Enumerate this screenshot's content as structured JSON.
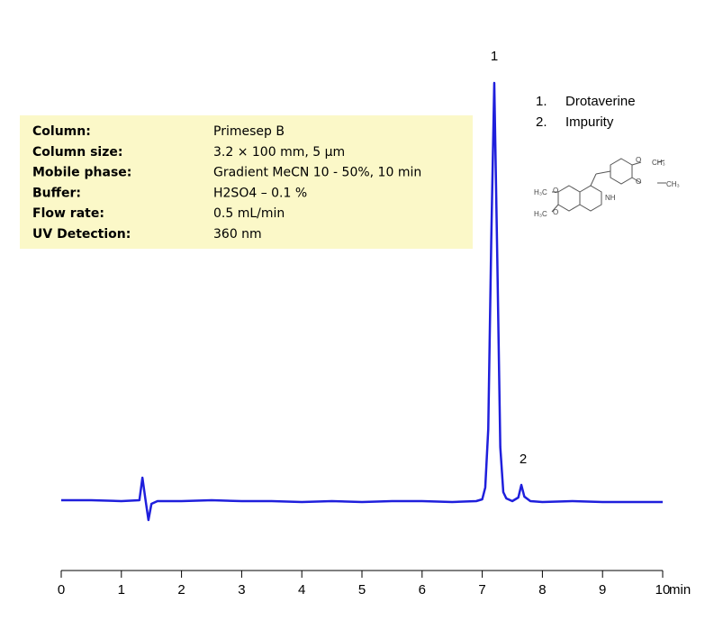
{
  "chart_data": {
    "type": "line",
    "x_label": "min",
    "x": [
      0,
      0.5,
      1.0,
      1.3,
      1.35,
      1.4,
      1.45,
      1.5,
      1.6,
      2,
      2.5,
      3,
      3.5,
      4,
      4.5,
      5,
      5.5,
      6,
      6.5,
      6.9,
      7.0,
      7.05,
      7.1,
      7.15,
      7.2,
      7.25,
      7.3,
      7.35,
      7.4,
      7.5,
      7.6,
      7.65,
      7.7,
      7.8,
      8,
      8.5,
      9,
      9.5,
      10
    ],
    "series": [
      {
        "color": "#1f1fdc",
        "values": [
          1,
          1,
          0,
          1,
          26,
          2,
          -21,
          -3,
          0,
          0,
          1,
          0,
          0,
          -1,
          0,
          -1,
          0,
          0,
          -1,
          0,
          2,
          15,
          80,
          290,
          464,
          270,
          60,
          10,
          3,
          0,
          4,
          18,
          5,
          0,
          -1,
          0,
          -1,
          -1,
          -1
        ]
      }
    ],
    "xlim": [
      0,
      10
    ],
    "xticks": [
      0,
      1,
      2,
      3,
      4,
      5,
      6,
      7,
      8,
      9,
      10
    ],
    "ylim": [
      -77,
      476
    ],
    "peak_labels": [
      "1",
      "2"
    ],
    "legend": [
      {
        "number": "1.",
        "name": "Drotaverine"
      },
      {
        "number": "2.",
        "name": "Impurity"
      }
    ],
    "conditions": [
      {
        "label": "Column:",
        "value": "Primesep  B"
      },
      {
        "label": "Column size:",
        "value": "3.2 × 100 mm, 5 µm"
      },
      {
        "label": "Mobile phase:",
        "value": "Gradient MeCN 10 - 50%, 10 min"
      },
      {
        "label": "Buffer:",
        "value": "H2SO4  – 0.1 %"
      },
      {
        "label": "Flow rate:",
        "value": "0.5 mL/min"
      },
      {
        "label": "UV Detection:",
        "value": "360 nm"
      }
    ],
    "structure_labels": [
      "H₃C",
      "O",
      "H₃C",
      "O",
      "NH",
      "O",
      "CH₃",
      "O",
      "CH₃"
    ]
  }
}
